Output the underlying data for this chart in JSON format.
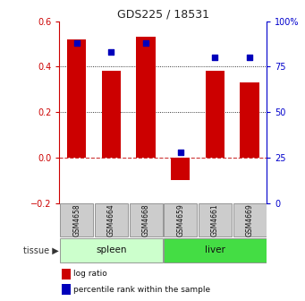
{
  "title": "GDS225 / 18531",
  "samples": [
    "GSM4658",
    "GSM4664",
    "GSM4668",
    "GSM4659",
    "GSM4661",
    "GSM4669"
  ],
  "log_ratio": [
    0.52,
    0.38,
    0.53,
    -0.1,
    0.38,
    0.33
  ],
  "percentile_rank": [
    88,
    83,
    88,
    28,
    80,
    80
  ],
  "tissue_groups": [
    {
      "label": "spleen",
      "indices": [
        0,
        1,
        2
      ],
      "color": "#ccffcc"
    },
    {
      "label": "liver",
      "indices": [
        3,
        4,
        5
      ],
      "color": "#44dd44"
    }
  ],
  "bar_color": "#cc0000",
  "dot_color": "#0000bb",
  "ylim_left": [
    -0.2,
    0.6
  ],
  "ylim_right": [
    0,
    100
  ],
  "yticks_left": [
    -0.2,
    0.0,
    0.2,
    0.4,
    0.6
  ],
  "yticks_right": [
    0,
    25,
    50,
    75,
    100
  ],
  "ytick_labels_right": [
    "0",
    "25",
    "50",
    "75",
    "100%"
  ],
  "hline_zero_color": "#cc3333",
  "hline_zero_style": "--",
  "grid_yticks": [
    0.2,
    0.4
  ],
  "bar_width": 0.55,
  "tissue_label": "tissue",
  "legend_log_ratio": "log ratio",
  "legend_percentile": "percentile rank within the sample",
  "bg_color": "#ffffff",
  "plot_bg": "#ffffff",
  "left_axis_color": "#cc0000",
  "right_axis_color": "#0000cc",
  "sample_bg_color": "#cccccc",
  "sample_border_color": "#888888"
}
